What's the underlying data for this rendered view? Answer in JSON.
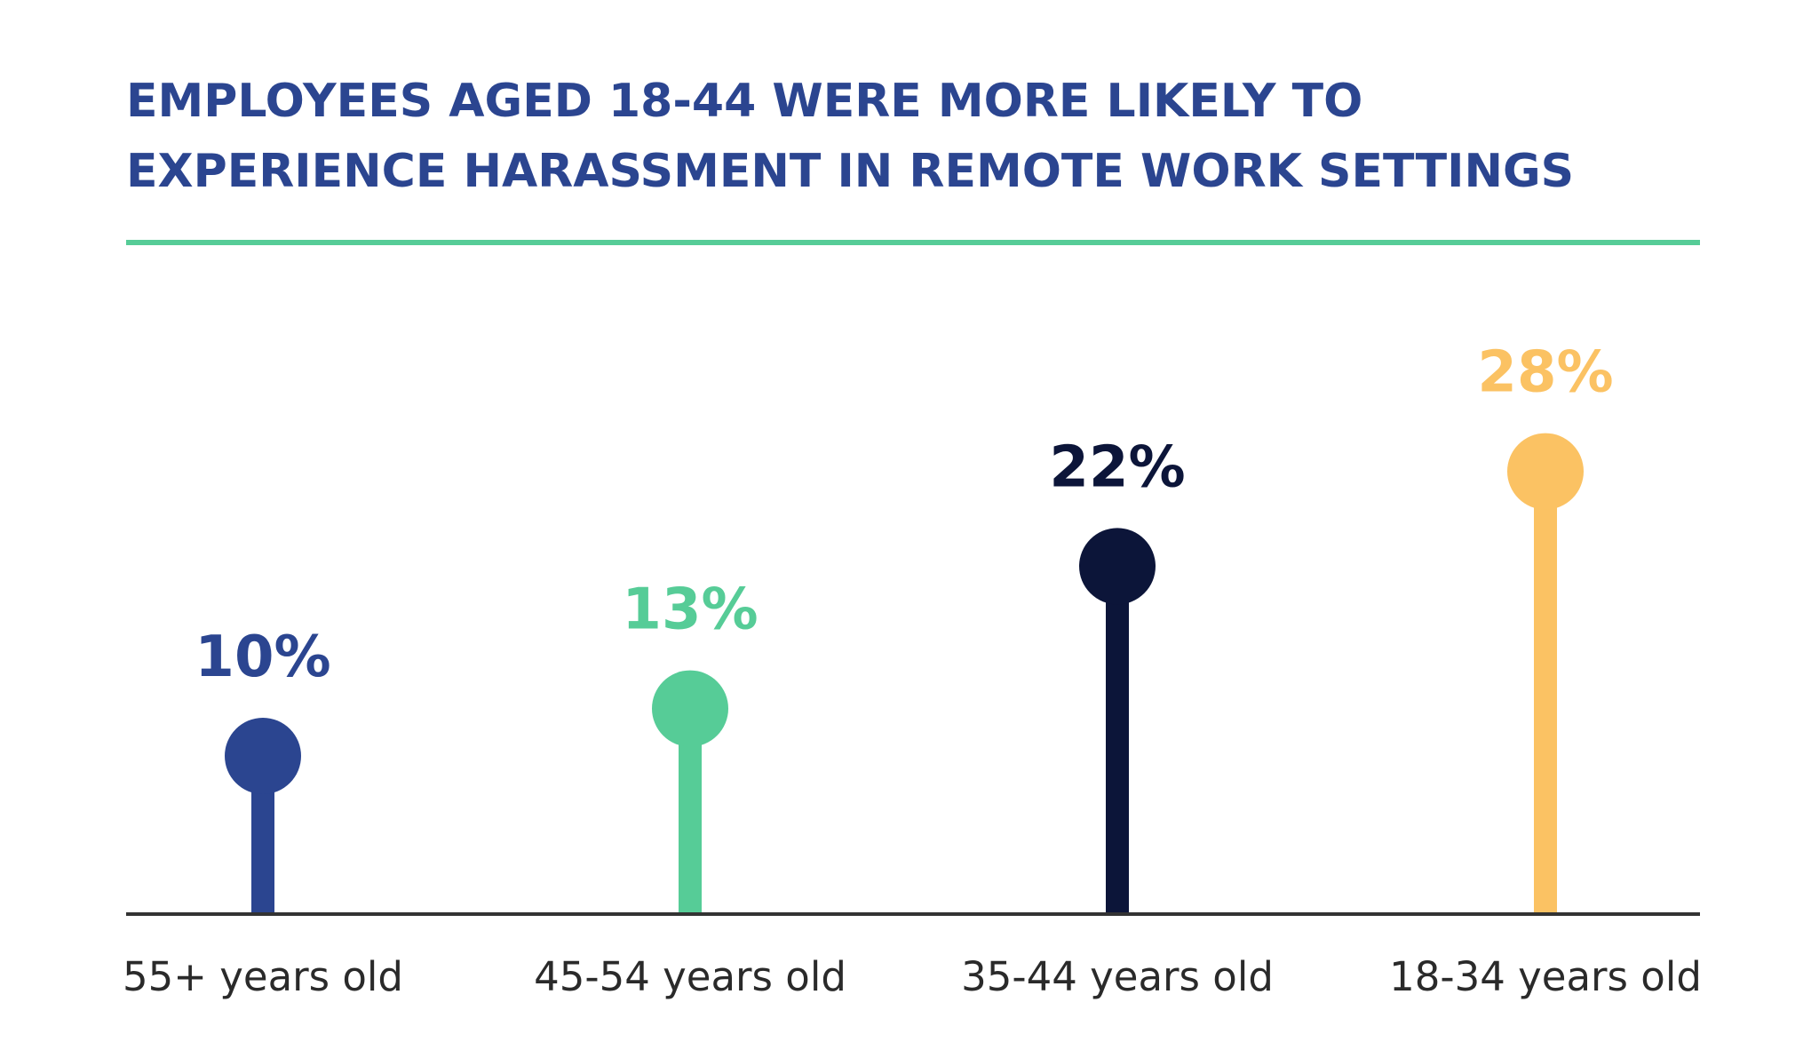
{
  "chart_data": {
    "type": "lollipop",
    "title": [
      "EMPLOYEES AGED 18-44 WERE MORE LIKELY TO",
      "EXPERIENCE HARASSMENT IN REMOTE WORK SETTINGS"
    ],
    "categories": [
      "55+ years old",
      "45-54 years old",
      "35-44 years old",
      "18-34 years old"
    ],
    "values": [
      10,
      13,
      22,
      28
    ],
    "value_labels": [
      "10%",
      "13%",
      "22%",
      "28%"
    ],
    "colors": [
      "#2b4590",
      "#56cc97",
      "#0c1539",
      "#fbc263"
    ],
    "ylim": [
      0,
      30
    ]
  }
}
